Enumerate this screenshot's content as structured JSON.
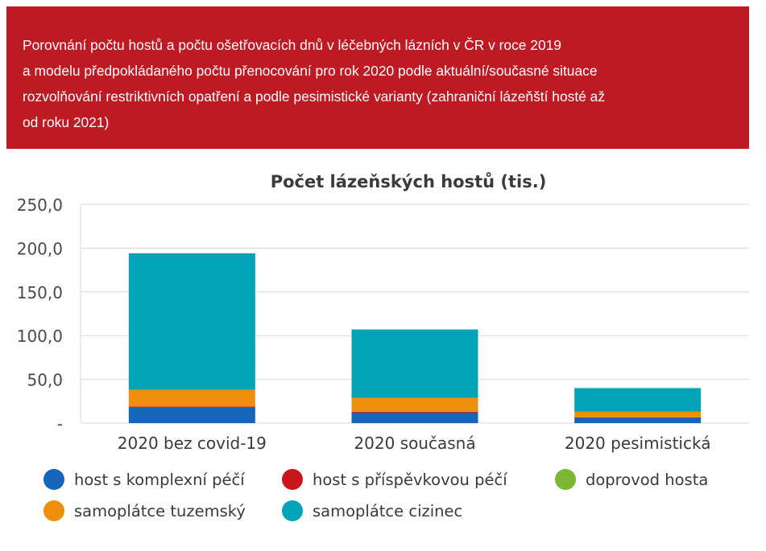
{
  "header": {
    "caption": "Porovnání počtu hostů a počtu ošetřovacích dnů v léčebných lázních v ČR v roce 2019\na modelu předpokládaného počtu přenocování pro rok 2020 podle aktuální/současné situace\nrozvolňování restriktivních opatření a podle pesimistické varianty (zahraniční lázeňští hosté až\nod roku 2021)"
  },
  "colors": {
    "banner": "#be1a23",
    "komplexni": "#1565b8",
    "prispevkova": "#c8161d",
    "doprovod": "#7ab833",
    "tuzemsky": "#ee8f0c",
    "cizinec": "#00a3b8"
  },
  "chart_data": {
    "type": "bar",
    "stacked": true,
    "title": "Počet lázeňských hostů (tis.)",
    "xlabel": "",
    "ylabel": "",
    "ylim": [
      0,
      250
    ],
    "yticks": [
      0,
      50,
      100,
      150,
      200,
      250
    ],
    "ytick_labels": [
      "-",
      "50,0",
      "100,0",
      "150,0",
      "200,0",
      "250,0"
    ],
    "grid": true,
    "legend_position": "bottom",
    "categories": [
      "2020 bez covid-19",
      "2020 současná",
      "2020 pesimistická"
    ],
    "series": [
      {
        "name": "host s komplexní péčí",
        "color": "#1565b8",
        "values": [
          18.0,
          12.0,
          6.0
        ]
      },
      {
        "name": "host s příspěvkovou péčí",
        "color": "#c8161d",
        "values": [
          1.0,
          1.0,
          0.5
        ]
      },
      {
        "name": "doprovod hosta",
        "color": "#7ab833",
        "values": [
          0.0,
          0.0,
          0.0
        ]
      },
      {
        "name": "samoplátce tuzemský",
        "color": "#ee8f0c",
        "values": [
          19.0,
          16.0,
          6.5
        ]
      },
      {
        "name": "samoplátce cizinec",
        "color": "#00a3b8",
        "values": [
          156.0,
          78.0,
          27.0
        ]
      }
    ]
  }
}
